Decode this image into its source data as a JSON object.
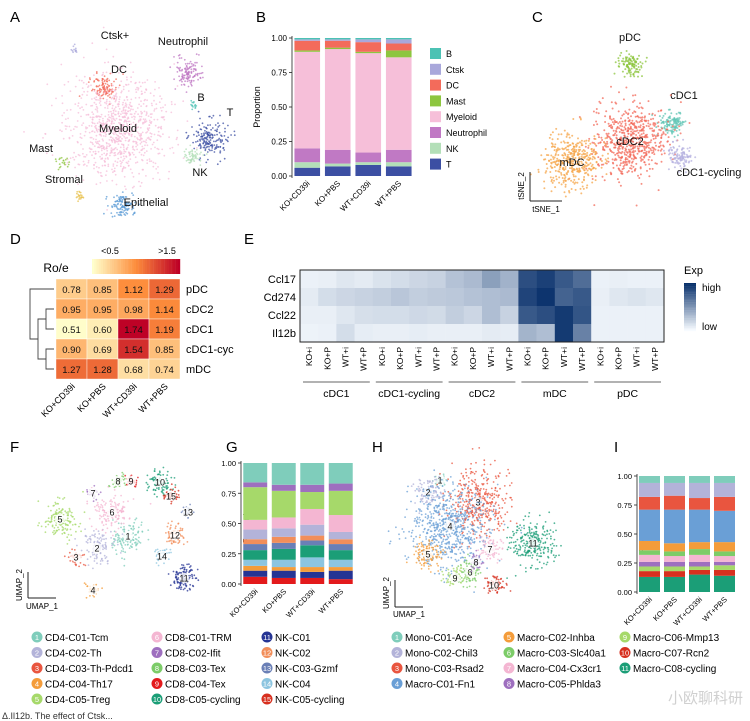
{
  "figure": {
    "panels": [
      "A",
      "B",
      "C",
      "D",
      "E",
      "F",
      "G",
      "H",
      "I"
    ],
    "watermark": "小欧聊科研",
    "caption_fragment": "Δ.Il12b. The effect of Ctsk..."
  },
  "palette": {
    "B": "#4cc2b4",
    "Ctsk": "#a9a8db",
    "DC": "#f36b5b",
    "Mast": "#8dc63f",
    "Myeloid": "#f6bfd9",
    "Neutrophil": "#c079c4",
    "NK": "#b3dfb8",
    "T": "#3c4fa3",
    "Stromal": "#e8c14f",
    "Epithelial": "#5b9bd5",
    "pDC": "#8dc63f",
    "cDC1": "#62c6b5",
    "cDC2": "#f36b5b",
    "cDC1cyc": "#b6b2e0",
    "mDC": "#f5a64a",
    "heat_low": "#ffffcc",
    "heat_mid": "#fd8d3c",
    "heat_high": "#bd0026",
    "exp_low": "#f7fbff",
    "exp_high": "#08306b"
  },
  "chart_data": [
    {
      "panel": "A",
      "type": "scatter",
      "title": "",
      "xlabel": "",
      "ylabel": "",
      "clusters": [
        {
          "name": "Ctsk+",
          "key": "Ctsk",
          "x": 75,
          "y": 49,
          "spread": 2,
          "n": 12,
          "label_dx": 40,
          "label_dy": -10
        },
        {
          "name": "Neutrophil",
          "key": "Neutrophil",
          "x": 188,
          "y": 73,
          "spread": 7,
          "n": 130,
          "label_dx": -5,
          "label_dy": -28
        },
        {
          "name": "DC",
          "key": "DC",
          "x": 104,
          "y": 88,
          "spread": 7,
          "n": 110,
          "label_dx": 15,
          "label_dy": -15
        },
        {
          "name": "Myeloid",
          "key": "Myeloid",
          "x": 118,
          "y": 128,
          "spread": 25,
          "n": 900,
          "label_dx": 0,
          "label_dy": 4
        },
        {
          "name": "B",
          "key": "B",
          "x": 193,
          "y": 105,
          "spread": 2,
          "n": 14,
          "label_dx": 8,
          "label_dy": -4
        },
        {
          "name": "T",
          "key": "T",
          "x": 210,
          "y": 138,
          "spread": 9,
          "n": 180,
          "label_dx": 20,
          "label_dy": -22
        },
        {
          "name": "NK",
          "key": "NK",
          "x": 192,
          "y": 156,
          "spread": 5,
          "n": 60,
          "label_dx": 8,
          "label_dy": 20
        },
        {
          "name": "Mast",
          "key": "Mast",
          "x": 63,
          "y": 162,
          "spread": 3,
          "n": 20,
          "label_dx": -22,
          "label_dy": -10
        },
        {
          "name": "Stromal",
          "key": "Stromal",
          "x": 79,
          "y": 196,
          "spread": 2,
          "n": 22,
          "label_dx": -15,
          "label_dy": -13
        },
        {
          "name": "Epithelial",
          "key": "Epithelial",
          "x": 122,
          "y": 206,
          "spread": 6,
          "n": 110,
          "label_dx": 24,
          "label_dy": 0
        }
      ]
    },
    {
      "panel": "B",
      "type": "bar",
      "stacked": true,
      "title": "",
      "xlabel": "",
      "ylabel": "Proportion",
      "ylim": [
        0,
        1
      ],
      "yticks": [
        "0.00",
        "0.25",
        "0.50",
        "0.75",
        "1.00"
      ],
      "categories": [
        "KO+CD39i",
        "KO+PBS",
        "WT+CD39i",
        "WT+PBS"
      ],
      "legend": [
        "B",
        "Ctsk",
        "DC",
        "Mast",
        "Myeloid",
        "Neutrophil",
        "NK",
        "T"
      ],
      "series": [
        {
          "name": "T",
          "key": "T",
          "values": [
            0.06,
            0.07,
            0.08,
            0.07
          ]
        },
        {
          "name": "NK",
          "key": "NK",
          "values": [
            0.04,
            0.02,
            0.02,
            0.03
          ]
        },
        {
          "name": "Neutrophil",
          "key": "Neutrophil",
          "values": [
            0.1,
            0.1,
            0.07,
            0.09
          ]
        },
        {
          "name": "Myeloid",
          "key": "Myeloid",
          "values": [
            0.7,
            0.73,
            0.72,
            0.67
          ]
        },
        {
          "name": "Mast",
          "key": "Mast",
          "values": [
            0.01,
            0.01,
            0.01,
            0.05
          ]
        },
        {
          "name": "DC",
          "key": "DC",
          "values": [
            0.07,
            0.05,
            0.07,
            0.05
          ]
        },
        {
          "name": "Ctsk",
          "key": "Ctsk",
          "values": [
            0.01,
            0.01,
            0.02,
            0.03
          ]
        },
        {
          "name": "B",
          "key": "B",
          "values": [
            0.01,
            0.01,
            0.01,
            0.01
          ]
        }
      ]
    },
    {
      "panel": "C",
      "type": "scatter",
      "title": "",
      "xlabel": "tSNE_1",
      "ylabel": "tSNE_2",
      "clusters": [
        {
          "name": "pDC",
          "key": "pDC",
          "x": 630,
          "y": 64,
          "spread": 6,
          "n": 110,
          "label_dx": 0,
          "label_dy": -23
        },
        {
          "name": "cDC1",
          "key": "cDC1",
          "x": 672,
          "y": 124,
          "spread": 6,
          "n": 120,
          "label_dx": 12,
          "label_dy": -25
        },
        {
          "name": "cDC2",
          "key": "cDC2",
          "x": 630,
          "y": 141,
          "spread": 18,
          "n": 600,
          "label_dx": 0,
          "label_dy": 4
        },
        {
          "name": "mDC",
          "key": "mDC",
          "x": 572,
          "y": 162,
          "spread": 14,
          "n": 380,
          "label_dx": 0,
          "label_dy": 4
        },
        {
          "name": "cDC1-cycling",
          "key": "cDC1cyc",
          "x": 681,
          "y": 156,
          "spread": 6,
          "n": 110,
          "label_dx": 28,
          "label_dy": 20
        }
      ]
    },
    {
      "panel": "D",
      "type": "heatmap",
      "title": "Ro/e",
      "colorbar_labels": [
        "<0.5",
        ">1.5"
      ],
      "rows": [
        "pDC",
        "cDC2",
        "cDC1",
        "cDC1-cyc",
        "mDC"
      ],
      "columns": [
        "KO+CD39i",
        "KO+PBS",
        "WT+CD39i",
        "WT+PBS"
      ],
      "values": [
        [
          0.78,
          0.85,
          1.12,
          1.29
        ],
        [
          0.95,
          0.95,
          0.98,
          1.14
        ],
        [
          0.51,
          0.6,
          1.74,
          1.19
        ],
        [
          0.9,
          0.69,
          1.54,
          0.85
        ],
        [
          1.27,
          1.28,
          0.68,
          0.74
        ]
      ],
      "labels": [
        [
          "0.78",
          "0.85",
          "1.12",
          "1.29"
        ],
        [
          "0.95",
          "0.95",
          "0.98",
          "1.14"
        ],
        [
          "0.51",
          "0.60",
          "1.74",
          "1.19"
        ],
        [
          "0.90",
          "0.69",
          "1.54",
          "0.85"
        ],
        [
          "1.27",
          "1.28",
          "0.68",
          "0.74"
        ]
      ]
    },
    {
      "panel": "E",
      "type": "heatmap",
      "title": "",
      "legend_title": "Exp",
      "legend_labels": [
        "high",
        "low"
      ],
      "rows": [
        "Ccl17",
        "Cd274",
        "Ccl22",
        "Il12b"
      ],
      "columns": [
        "KO+i",
        "KO+P",
        "WT+i",
        "WT+P",
        "KO+i",
        "KO+P",
        "WT+i",
        "WT+P",
        "KO+i",
        "KO+P",
        "WT+i",
        "WT+P",
        "KO+i",
        "KO+P",
        "WT+i",
        "WT+P",
        "KO+i",
        "KO+P",
        "WT+i",
        "WT+P"
      ],
      "groups": [
        "cDC1",
        "cDC1-cycling",
        "cDC2",
        "mDC",
        "pDC"
      ],
      "values": [
        [
          0.05,
          0.06,
          0.1,
          0.08,
          0.12,
          0.15,
          0.18,
          0.2,
          0.28,
          0.32,
          0.45,
          0.36,
          0.85,
          0.92,
          0.8,
          0.7,
          0.05,
          0.06,
          0.05,
          0.05
        ],
        [
          0.08,
          0.15,
          0.18,
          0.2,
          0.22,
          0.26,
          0.22,
          0.24,
          0.25,
          0.28,
          0.3,
          0.32,
          0.9,
          0.98,
          0.75,
          0.8,
          0.06,
          0.1,
          0.12,
          0.1
        ],
        [
          0.06,
          0.06,
          0.1,
          0.14,
          0.15,
          0.15,
          0.17,
          0.16,
          0.22,
          0.18,
          0.3,
          0.2,
          0.8,
          0.85,
          0.95,
          0.82,
          0.05,
          0.05,
          0.05,
          0.05
        ],
        [
          0.04,
          0.05,
          0.15,
          0.07,
          0.06,
          0.06,
          0.07,
          0.06,
          0.06,
          0.06,
          0.08,
          0.07,
          0.35,
          0.3,
          0.95,
          0.6,
          0.05,
          0.05,
          0.05,
          0.05
        ]
      ]
    },
    {
      "panel": "F",
      "type": "scatter",
      "title": "",
      "xlabel": "UMAP_1",
      "ylabel": "UMAP_2",
      "clusters": [
        {
          "num": 1,
          "name": "CD4-C01-Tcm",
          "color": "#7fcdbb",
          "x": 128,
          "y": 536,
          "spread": 9,
          "n": 120
        },
        {
          "num": 2,
          "name": "CD4-C02-Th",
          "color": "#b3b3d9",
          "x": 97,
          "y": 548,
          "spread": 8,
          "n": 110
        },
        {
          "num": 3,
          "name": "CD4-C03-Th-Pdcd1",
          "color": "#e9553f",
          "x": 76,
          "y": 557,
          "spread": 4,
          "n": 35
        },
        {
          "num": 4,
          "name": "CD4-C04-Th17",
          "color": "#f49c3a",
          "x": 93,
          "y": 590,
          "spread": 4,
          "n": 30
        },
        {
          "num": 5,
          "name": "CD4-C05-Treg",
          "color": "#a6d96a",
          "x": 60,
          "y": 519,
          "spread": 9,
          "n": 150
        },
        {
          "num": 6,
          "name": "CD8-C01-TRM",
          "color": "#f4b6d2",
          "x": 112,
          "y": 512,
          "spread": 9,
          "n": 140
        },
        {
          "num": 7,
          "name": "CD8-C02-Ifit",
          "color": "#9e6fbf",
          "x": 93,
          "y": 493,
          "spread": 3,
          "n": 25
        },
        {
          "num": 8,
          "name": "CD8-C03-Tex",
          "color": "#7ccc68",
          "x": 118,
          "y": 481,
          "spread": 4,
          "n": 40
        },
        {
          "num": 9,
          "name": "CD8-C04-Tex",
          "color": "#e31a1c",
          "x": 131,
          "y": 481,
          "spread": 3,
          "n": 30
        },
        {
          "num": 10,
          "name": "CD8-C05-cycling",
          "color": "#1b9e77",
          "x": 160,
          "y": 482,
          "spread": 6,
          "n": 90
        },
        {
          "num": 11,
          "name": "NK-C01",
          "color": "#253494",
          "x": 184,
          "y": 578,
          "spread": 6,
          "n": 120
        },
        {
          "num": 12,
          "name": "NK-C02",
          "color": "#f28e5a",
          "x": 175,
          "y": 535,
          "spread": 5,
          "n": 70
        },
        {
          "num": 13,
          "name": "NK-C03-Gzmf",
          "color": "#6a7fb6",
          "x": 188,
          "y": 512,
          "spread": 3,
          "n": 25
        },
        {
          "num": 14,
          "name": "NK-C04",
          "color": "#8cc5e0",
          "x": 162,
          "y": 556,
          "spread": 4,
          "n": 40
        },
        {
          "num": 15,
          "name": "NK-C05-cycling",
          "color": "#d7301f",
          "x": 171,
          "y": 496,
          "spread": 4,
          "n": 50
        }
      ]
    },
    {
      "panel": "G",
      "type": "bar",
      "stacked": true,
      "title": "",
      "xlabel": "",
      "ylabel": "Proportion",
      "ylim": [
        0,
        1
      ],
      "yticks": [
        "0.00",
        "0.25",
        "0.50",
        "0.75",
        "1.00"
      ],
      "categories": [
        "KO+CD39i",
        "KO+PBS",
        "WT+CD39i",
        "WT+PBS"
      ],
      "series": [
        {
          "name": "CD4-C03-Th-Pdcd1",
          "color": "#e31a1c",
          "values": [
            0.06,
            0.05,
            0.05,
            0.04
          ]
        },
        {
          "name": "NK-C01",
          "color": "#253494",
          "values": [
            0.05,
            0.06,
            0.05,
            0.07
          ]
        },
        {
          "name": "CD4-C04-Th17",
          "color": "#f49c3a",
          "values": [
            0.04,
            0.03,
            0.04,
            0.03
          ]
        },
        {
          "name": "NK-C04",
          "color": "#8cc5e0",
          "values": [
            0.05,
            0.06,
            0.08,
            0.06
          ]
        },
        {
          "name": "CD8-C05-cycling",
          "color": "#1b9e77",
          "values": [
            0.08,
            0.09,
            0.1,
            0.08
          ]
        },
        {
          "name": "NK-C03-Gzmf",
          "color": "#6a7fb6",
          "values": [
            0.05,
            0.05,
            0.04,
            0.05
          ]
        },
        {
          "name": "NK-C02",
          "color": "#f28e5a",
          "values": [
            0.04,
            0.05,
            0.04,
            0.04
          ]
        },
        {
          "name": "CD4-C02-Th",
          "color": "#b3b3d9",
          "values": [
            0.08,
            0.07,
            0.09,
            0.06
          ]
        },
        {
          "name": "CD8-C01-TRM",
          "color": "#f4b6d2",
          "values": [
            0.08,
            0.09,
            0.13,
            0.14
          ]
        },
        {
          "name": "CD4-C05-Treg",
          "color": "#a6d96a",
          "values": [
            0.27,
            0.22,
            0.14,
            0.2
          ]
        },
        {
          "name": "CD8-C02-Ifit",
          "color": "#9e6fbf",
          "values": [
            0.04,
            0.05,
            0.06,
            0.06
          ]
        },
        {
          "name": "CD4-C01-Tcm",
          "color": "#7fcdbb",
          "values": [
            0.16,
            0.18,
            0.18,
            0.17
          ]
        }
      ]
    },
    {
      "panel": "H",
      "type": "scatter",
      "title": "",
      "xlabel": "UMAP_1",
      "ylabel": "UMAP_2",
      "clusters": [
        {
          "num": 1,
          "name": "Mono-C01-Ace",
          "color": "#7fcdbb",
          "x": 440,
          "y": 480,
          "spread": 3,
          "n": 40
        },
        {
          "num": 2,
          "name": "Mono-C02-Chil3",
          "color": "#b3b3d9",
          "x": 428,
          "y": 492,
          "spread": 7,
          "n": 100
        },
        {
          "num": 3,
          "name": "Mono-C03-Rsad2",
          "color": "#e9553f",
          "x": 478,
          "y": 502,
          "spread": 16,
          "n": 380
        },
        {
          "num": 4,
          "name": "Macro-C01-Fn1",
          "color": "#6a9fd6",
          "x": 450,
          "y": 526,
          "spread": 20,
          "n": 650
        },
        {
          "num": 5,
          "name": "Macro-C02-Inhba",
          "color": "#f49c3a",
          "x": 428,
          "y": 554,
          "spread": 7,
          "n": 110
        },
        {
          "num": 6,
          "name": "Macro-C03-Slc40a1",
          "color": "#7ccc68",
          "x": 470,
          "y": 572,
          "spread": 6,
          "n": 80
        },
        {
          "num": 7,
          "name": "Macro-C04-Cx3cr1",
          "color": "#f4b6d2",
          "x": 490,
          "y": 549,
          "spread": 6,
          "n": 80
        },
        {
          "num": 8,
          "name": "Macro-C05-Phlda3",
          "color": "#9e6fbf",
          "x": 476,
          "y": 562,
          "spread": 4,
          "n": 40
        },
        {
          "num": 9,
          "name": "Macro-C06-Mmp13",
          "color": "#a6d96a",
          "x": 455,
          "y": 578,
          "spread": 5,
          "n": 60
        },
        {
          "num": 10,
          "name": "Macro-C07-Rcn2",
          "color": "#d7301f",
          "x": 494,
          "y": 585,
          "spread": 5,
          "n": 70
        },
        {
          "num": 11,
          "name": "Macro-C08-cycling",
          "color": "#1b9e77",
          "x": 533,
          "y": 543,
          "spread": 11,
          "n": 260
        }
      ]
    },
    {
      "panel": "I",
      "type": "bar",
      "stacked": true,
      "title": "",
      "xlabel": "",
      "ylabel": "Proportion",
      "ylim": [
        0,
        1
      ],
      "yticks": [
        "0.00",
        "0.25",
        "0.50",
        "0.75",
        "1.00"
      ],
      "categories": [
        "KO+CD39i",
        "KO+PBS",
        "WT+CD39i",
        "WT+PBS"
      ],
      "series": [
        {
          "name": "Macro-C08-cycling",
          "color": "#1b9e77",
          "values": [
            0.13,
            0.13,
            0.15,
            0.14
          ]
        },
        {
          "name": "Macro-C07-Rcn2",
          "color": "#d7301f",
          "values": [
            0.05,
            0.05,
            0.04,
            0.05
          ]
        },
        {
          "name": "Macro-C06-Mmp13",
          "color": "#a6d96a",
          "values": [
            0.04,
            0.04,
            0.03,
            0.04
          ]
        },
        {
          "name": "Macro-C05-Phlda3",
          "color": "#9e6fbf",
          "values": [
            0.04,
            0.04,
            0.04,
            0.03
          ]
        },
        {
          "name": "Macro-C04-Cx3cr1",
          "color": "#f4b6d2",
          "values": [
            0.06,
            0.05,
            0.06,
            0.05
          ]
        },
        {
          "name": "Macro-C03-Slc40a1",
          "color": "#7ccc68",
          "values": [
            0.04,
            0.04,
            0.05,
            0.04
          ]
        },
        {
          "name": "Macro-C02-Inhba",
          "color": "#f49c3a",
          "values": [
            0.08,
            0.07,
            0.06,
            0.08
          ]
        },
        {
          "name": "Macro-C01-Fn1",
          "color": "#6a9fd6",
          "values": [
            0.27,
            0.29,
            0.28,
            0.27
          ]
        },
        {
          "name": "Mono-C03-Rsad2",
          "color": "#e9553f",
          "values": [
            0.11,
            0.12,
            0.1,
            0.12
          ]
        },
        {
          "name": "Mono-C02-Chil3",
          "color": "#b3b3d9",
          "values": [
            0.12,
            0.11,
            0.13,
            0.12
          ]
        },
        {
          "name": "Mono-C01-Ace",
          "color": "#7fcdbb",
          "values": [
            0.06,
            0.06,
            0.06,
            0.06
          ]
        }
      ]
    }
  ]
}
